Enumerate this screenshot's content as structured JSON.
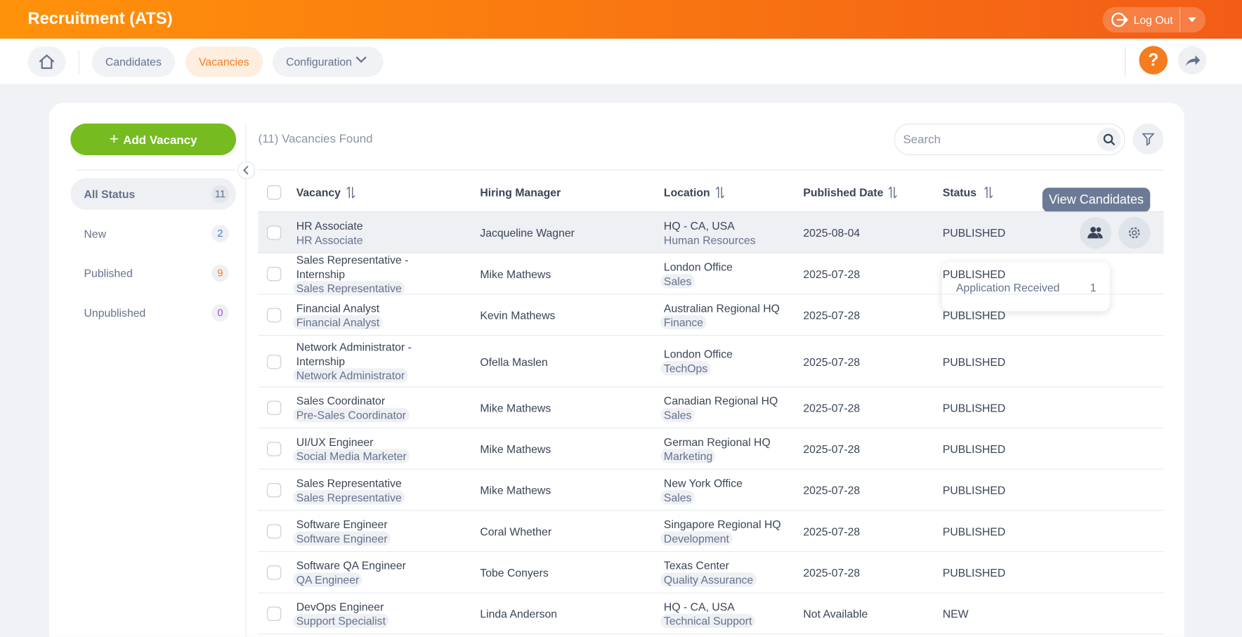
{
  "header": {
    "title": "Recruitment (ATS)",
    "logout": "Log Out"
  },
  "nav": {
    "items": [
      "Candidates",
      "Vacancies",
      "Configuration"
    ]
  },
  "toolbar": {
    "add_button": "Add Vacancy",
    "found": "(11) Vacancies Found",
    "search_placeholder": "Search"
  },
  "filters": [
    {
      "label": "All Status",
      "count": 11
    },
    {
      "label": "New",
      "count": 2
    },
    {
      "label": "Published",
      "count": 9
    },
    {
      "label": "Unpublished",
      "count": 0
    }
  ],
  "table": {
    "columns": [
      "Vacancy",
      "Hiring Manager",
      "Location",
      "Published Date",
      "Status"
    ],
    "rows": [
      {
        "title": "HR Associate",
        "subtitle": "HR Associate",
        "manager": "Jacqueline Wagner",
        "location": "HQ - CA, USA",
        "department": "Human Resources",
        "date": "2025-08-04",
        "status": "PUBLISHED"
      },
      {
        "title": "Sales Representative - Internship",
        "subtitle": "Sales Representative",
        "manager": "Mike Mathews",
        "location": "London Office",
        "department": "Sales",
        "date": "2025-07-28",
        "status": "PUBLISHED"
      },
      {
        "title": "Financial Analyst",
        "subtitle": "Financial Analyst",
        "manager": "Kevin Mathews",
        "location": "Australian Regional HQ",
        "department": "Finance",
        "date": "2025-07-28",
        "status": "PUBLISHED"
      },
      {
        "title": "Network Administrator - Internship",
        "subtitle": "Network Administrator",
        "manager": "Ofella Maslen",
        "location": "London Office",
        "department": "TechOps",
        "date": "2025-07-28",
        "status": "PUBLISHED"
      },
      {
        "title": "Sales Coordinator",
        "subtitle": "Pre-Sales Coordinator",
        "manager": "Mike Mathews",
        "location": "Canadian Regional HQ",
        "department": "Sales",
        "date": "2025-07-28",
        "status": "PUBLISHED"
      },
      {
        "title": "UI/UX Engineer",
        "subtitle": "Social Media Marketer",
        "manager": "Mike Mathews",
        "location": "German Regional HQ",
        "department": "Marketing",
        "date": "2025-07-28",
        "status": "PUBLISHED"
      },
      {
        "title": "Sales Representative",
        "subtitle": "Sales Representative",
        "manager": "Mike Mathews",
        "location": "New York Office",
        "department": "Sales",
        "date": "2025-07-28",
        "status": "PUBLISHED"
      },
      {
        "title": "Software Engineer",
        "subtitle": "Software Engineer",
        "manager": "Coral Whether",
        "location": "Singapore Regional HQ",
        "department": "Development",
        "date": "2025-07-28",
        "status": "PUBLISHED"
      },
      {
        "title": "Software QA Engineer",
        "subtitle": "QA Engineer",
        "manager": "Tobe Conyers",
        "location": "Texas Center",
        "department": "Quality Assurance",
        "date": "2025-07-28",
        "status": "PUBLISHED"
      },
      {
        "title": "DevOps Engineer",
        "subtitle": "Support Specialist",
        "manager": "Linda Anderson",
        "location": "HQ - CA, USA",
        "department": "Technical Support",
        "date": "Not Available",
        "status": "NEW"
      }
    ]
  },
  "tooltip": "View Candidates",
  "popup": {
    "label": "Application Received",
    "count": 1
  }
}
